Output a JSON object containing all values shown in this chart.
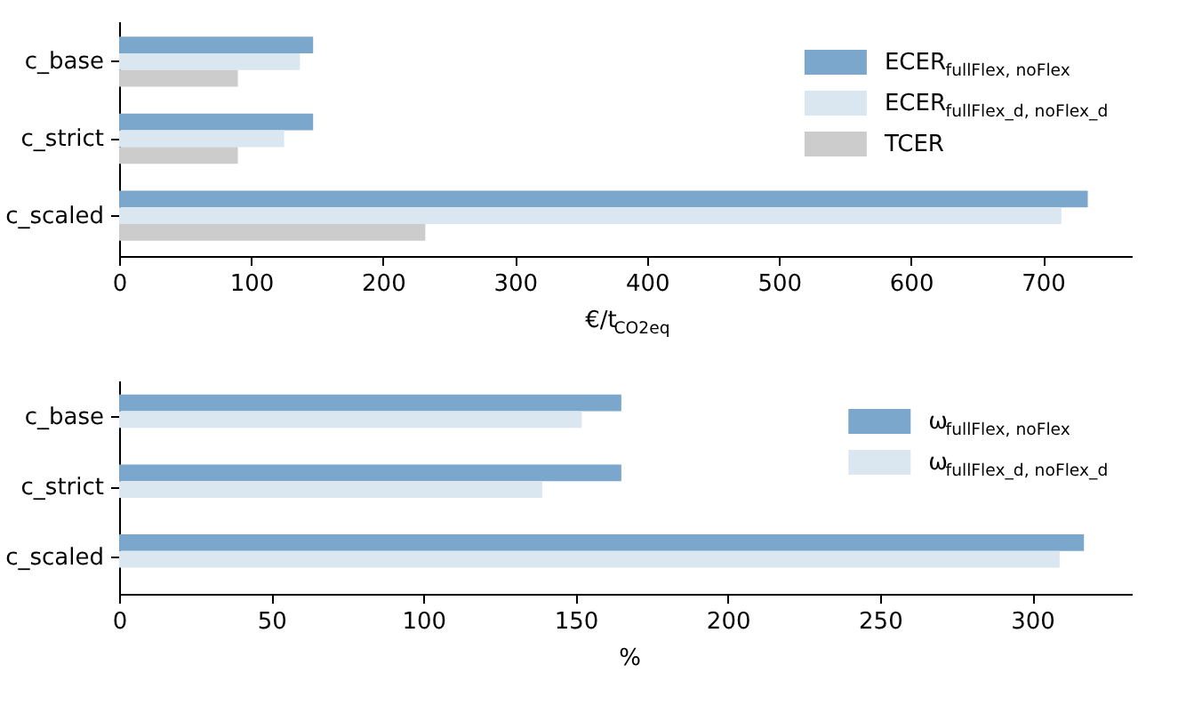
{
  "chart_data": [
    {
      "type": "bar",
      "orientation": "horizontal",
      "categories": [
        "c_base",
        "c_strict",
        "c_scaled"
      ],
      "xlabel": "€/t$_{CO2eq}$",
      "xlim": [
        0,
        768
      ],
      "xticks": [
        0,
        100,
        200,
        300,
        400,
        500,
        600,
        700
      ],
      "grid": false,
      "legend": "top right",
      "series": [
        {
          "name": "ECER$_{fullFlex, noFlex}$",
          "color": "#7ba7cc",
          "values": [
            147,
            147,
            734
          ]
        },
        {
          "name": "ECER$_{fullFlex_d, noFlex_d}$",
          "color": "#dae6f0",
          "values": [
            137,
            125,
            714
          ]
        },
        {
          "name": "TCER",
          "color": "#cccccc",
          "values": [
            90,
            90,
            232
          ]
        }
      ]
    },
    {
      "type": "bar",
      "orientation": "horizontal",
      "categories": [
        "c_base",
        "c_strict",
        "c_scaled"
      ],
      "xlabel": "%",
      "xlim": [
        0,
        333
      ],
      "xticks": [
        0,
        50,
        100,
        150,
        200,
        250,
        300
      ],
      "grid": false,
      "legend": "top right",
      "series": [
        {
          "name": "ω$_{fullFlex, noFlex}$",
          "color": "#7ba7cc",
          "values": [
            165,
            165,
            317
          ]
        },
        {
          "name": "ω$_{fullFlex_d, noFlex_d}$",
          "color": "#dae6f0",
          "values": [
            152,
            139,
            309
          ]
        }
      ]
    }
  ]
}
